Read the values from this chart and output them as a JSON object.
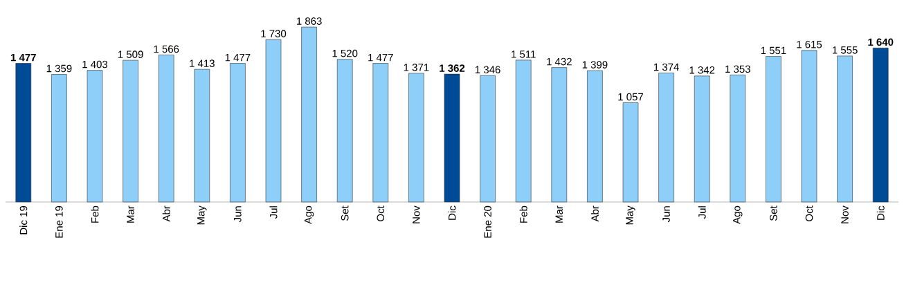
{
  "chart_data": {
    "type": "bar",
    "categories": [
      "Dic 19",
      "Ene 19",
      "Feb",
      "Mar",
      "Abr",
      "May",
      "Jun",
      "Jul",
      "Ago",
      "Set",
      "Oct",
      "Nov",
      "Dic",
      "Ene 20",
      "Feb",
      "Mar",
      "Abr",
      "May",
      "Jun",
      "Jul",
      "Ago",
      "Set",
      "Oct",
      "Nov",
      "Dic"
    ],
    "values": [
      1477,
      1359,
      1403,
      1509,
      1566,
      1413,
      1477,
      1730,
      1863,
      1520,
      1477,
      1371,
      1362,
      1346,
      1511,
      1432,
      1399,
      1057,
      1374,
      1342,
      1353,
      1551,
      1615,
      1555,
      1640
    ],
    "colors": [
      "#004b96",
      "#8ecff9",
      "#8ecff9",
      "#8ecff9",
      "#8ecff9",
      "#8ecff9",
      "#8ecff9",
      "#8ecff9",
      "#8ecff9",
      "#8ecff9",
      "#8ecff9",
      "#8ecff9",
      "#004b96",
      "#8ecff9",
      "#8ecff9",
      "#8ecff9",
      "#8ecff9",
      "#8ecff9",
      "#8ecff9",
      "#8ecff9",
      "#8ecff9",
      "#8ecff9",
      "#8ecff9",
      "#8ecff9",
      "#004b96"
    ],
    "value_labels": [
      "**1 477**",
      "1 359",
      "1 403",
      "1 509",
      "1 566",
      "1 413",
      "1 477",
      "1 730",
      "1 863",
      "1 520",
      "1 477",
      "1 371",
      "**1 362**",
      "1 346",
      "1 511",
      "1 432",
      "1 399",
      "1 057",
      "1 374",
      "1 342",
      "1 353",
      "1 551",
      "1 615",
      "1 555",
      "**1 640**"
    ],
    "grid": false
  }
}
